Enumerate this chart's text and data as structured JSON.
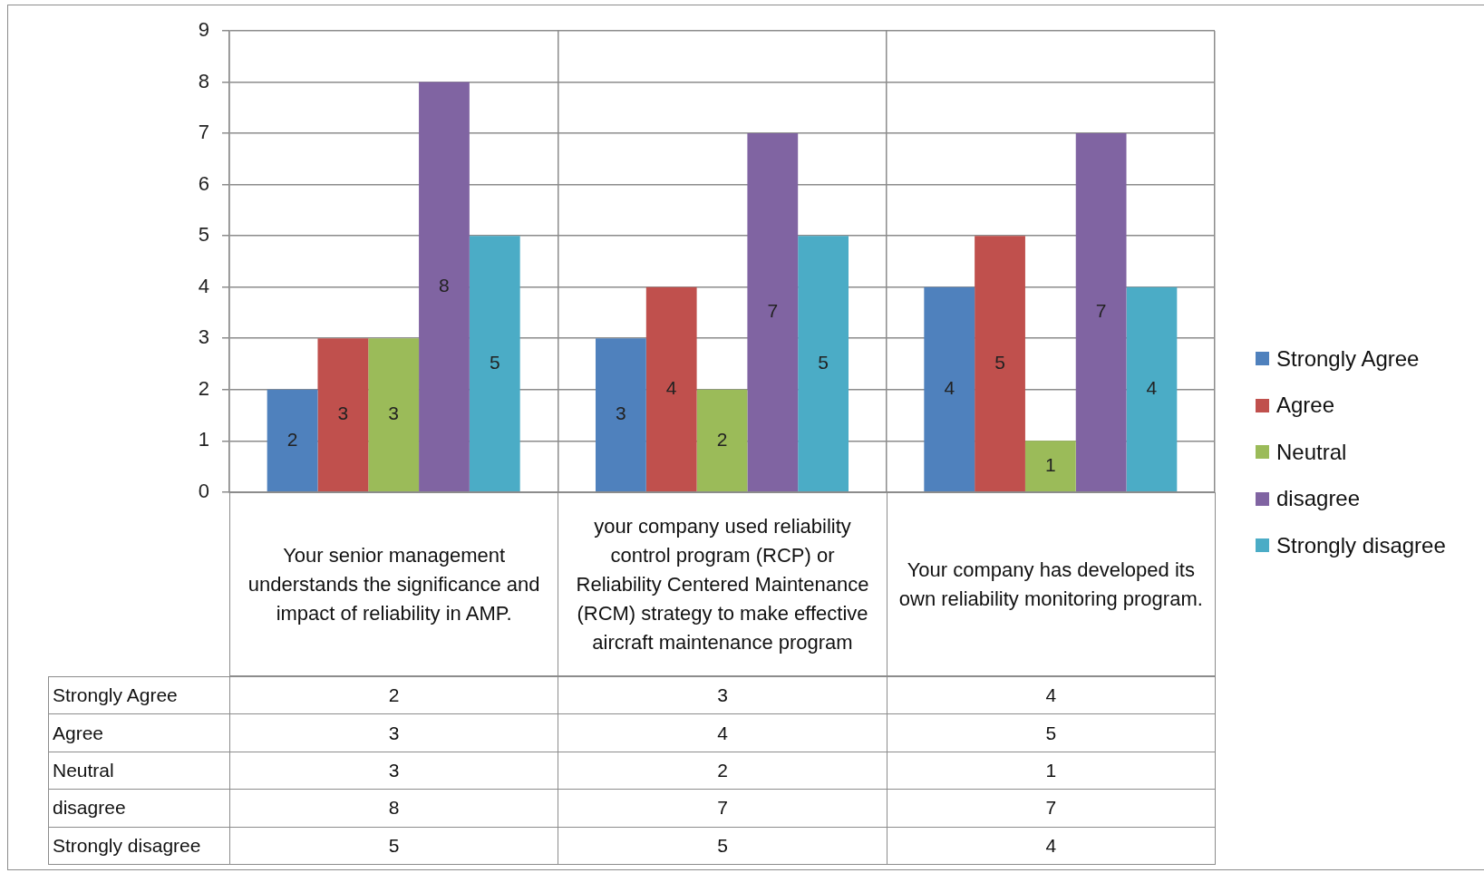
{
  "chart_data": {
    "type": "bar",
    "categories": [
      "Your senior management understands the significance and impact of reliability in AMP.",
      "your company used reliability control program (RCP) or Reliability Centered Maintenance (RCM) strategy to make effective  aircraft maintenance program",
      "Your company has developed its own reliability monitoring program."
    ],
    "series": [
      {
        "name": "Strongly Agree",
        "color": "#4f81bd",
        "values": [
          2,
          3,
          4
        ]
      },
      {
        "name": "Agree",
        "color": "#c0504d",
        "values": [
          3,
          4,
          5
        ]
      },
      {
        "name": "Neutral",
        "color": "#9bbb59",
        "values": [
          3,
          2,
          1
        ]
      },
      {
        "name": "disagree",
        "color": "#8064a2",
        "values": [
          8,
          7,
          7
        ]
      },
      {
        "name": "Strongly disagree",
        "color": "#4bacc6",
        "values": [
          5,
          5,
          4
        ]
      }
    ],
    "annotations": [
      "2",
      "3",
      "4",
      "3",
      "4",
      "5",
      "3",
      "2",
      "1",
      "8",
      "7",
      "7",
      "5",
      "5",
      "4"
    ],
    "ylim": [
      0,
      9
    ],
    "yticks": [
      0,
      1,
      2,
      3,
      4,
      5,
      6,
      7,
      8,
      9
    ],
    "grid": true,
    "legend": "right",
    "data_labels": true
  }
}
